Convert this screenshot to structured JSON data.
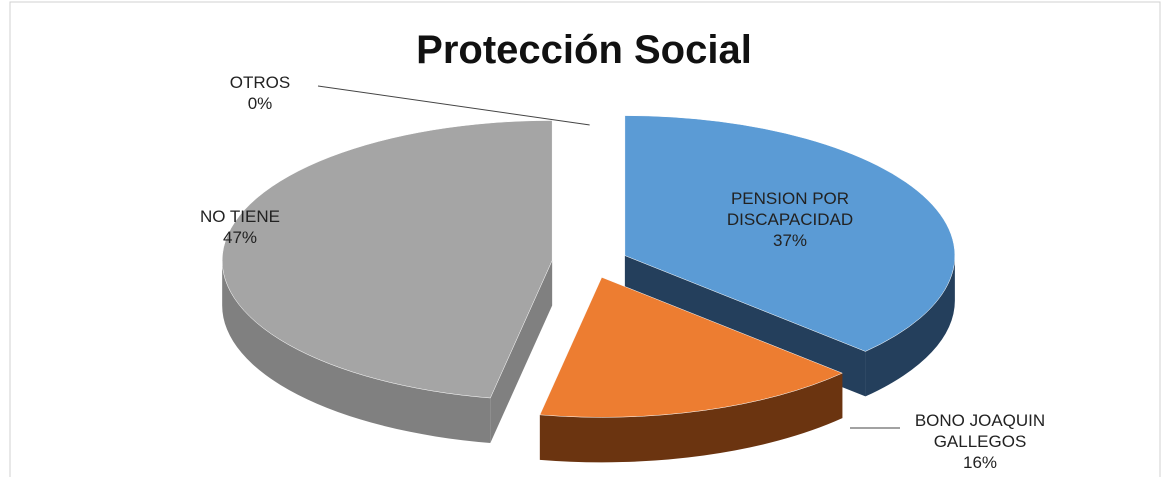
{
  "chart_data": {
    "type": "pie3d",
    "title": "Protección Social",
    "categories": [
      "PENSION POR DISCAPACIDAD",
      "BONO JOAQUIN GALLEGOS",
      "NO TIENE",
      "OTROS"
    ],
    "values": [
      37,
      16,
      47,
      0
    ],
    "value_labels": [
      "37%",
      "16%",
      "47%",
      "0%"
    ],
    "colors": [
      "#5b9bd5",
      "#ed7d31",
      "#a5a5a5",
      "#ffc000"
    ],
    "side_colors": [
      "#243f5c",
      "#6b3410",
      "#808080",
      "#8a6a00"
    ]
  }
}
